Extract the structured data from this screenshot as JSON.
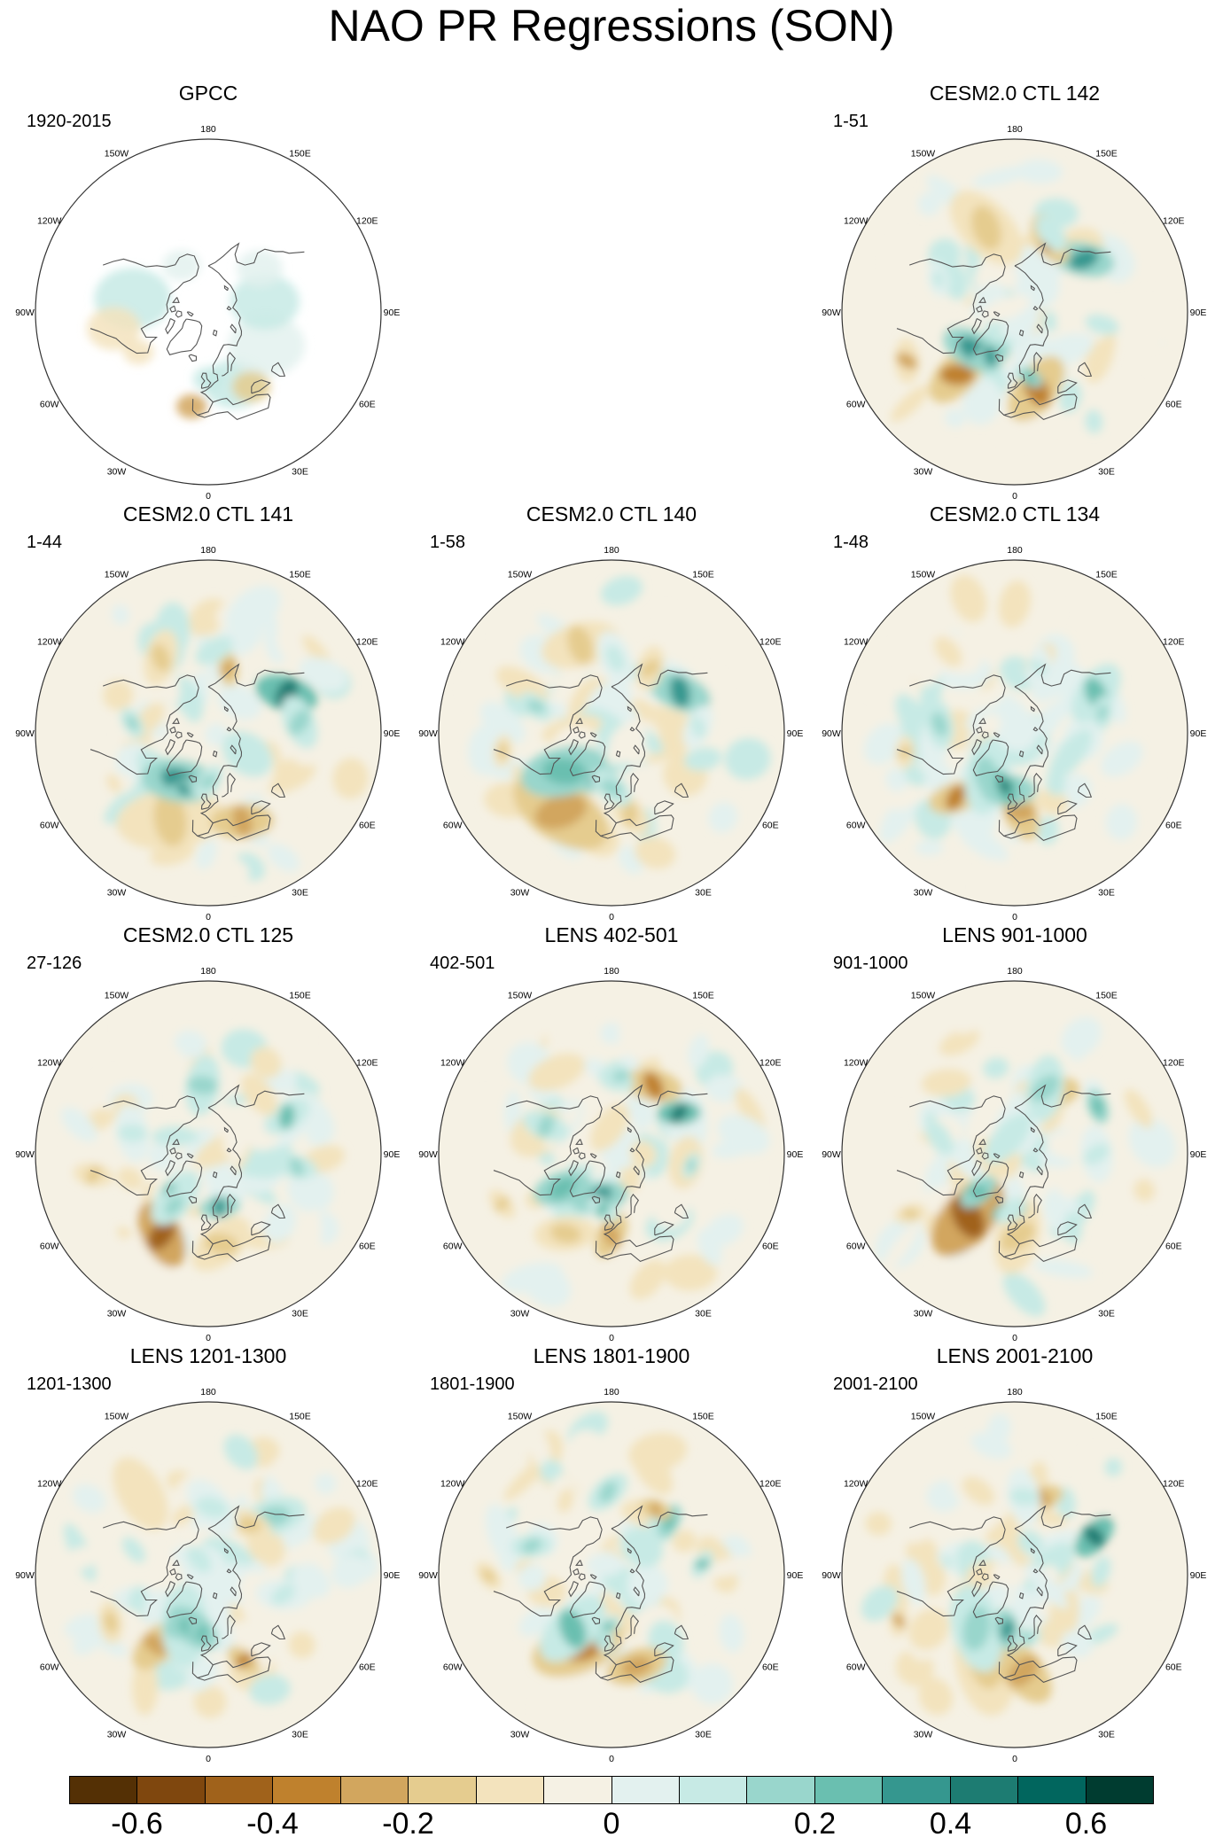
{
  "title": "NAO PR Regressions (SON)",
  "longitude_labels": [
    "180",
    "150E",
    "120E",
    "90E",
    "60E",
    "30E",
    "0",
    "30W",
    "60W",
    "90W",
    "120W",
    "150W"
  ],
  "panels": [
    {
      "id": "gpcc",
      "title": "GPCC",
      "subtitle": "1920-2015",
      "land_only": true
    },
    {
      "id": "ctl142",
      "title": "CESM2.0 CTL 142",
      "subtitle": "1-51"
    },
    {
      "id": "ctl141",
      "title": "CESM2.0 CTL 141",
      "subtitle": "1-44"
    },
    {
      "id": "ctl140",
      "title": "CESM2.0 CTL 140",
      "subtitle": "1-58"
    },
    {
      "id": "ctl134",
      "title": "CESM2.0 CTL 134",
      "subtitle": "1-48"
    },
    {
      "id": "ctl125",
      "title": "CESM2.0 CTL 125",
      "subtitle": "27-126"
    },
    {
      "id": "lens402",
      "title": "LENS 402-501",
      "subtitle": "402-501"
    },
    {
      "id": "lens901",
      "title": "LENS 901-1000",
      "subtitle": "901-1000"
    },
    {
      "id": "lens1201",
      "title": "LENS 1201-1300",
      "subtitle": "1201-1300"
    },
    {
      "id": "lens1801",
      "title": "LENS 1801-1900",
      "subtitle": "1801-1900"
    },
    {
      "id": "lens2001",
      "title": "LENS 2001-2100",
      "subtitle": "2001-2100"
    }
  ],
  "colorbar": {
    "colors": [
      "#543005",
      "#7f470e",
      "#a0621b",
      "#bf812d",
      "#d2a65e",
      "#e5cc8f",
      "#f3e3bd",
      "#f5f1e4",
      "#e3f1ef",
      "#c7eae5",
      "#99d6cc",
      "#6abfb0",
      "#35978f",
      "#1d7c72",
      "#01665e",
      "#003c30"
    ],
    "labels": [
      "-0.6",
      "-0.4",
      "-0.2",
      "0",
      "0.2",
      "0.4",
      "0.6"
    ],
    "label_boxes": [
      1,
      3,
      5,
      8,
      11,
      13,
      15
    ]
  },
  "chart_data": {
    "type": "map",
    "projection": "north polar stereographic",
    "variable": "PR regression on NAO",
    "season": "SON",
    "contour_levels": [
      -0.7,
      -0.6,
      -0.5,
      -0.4,
      -0.3,
      -0.2,
      -0.1,
      0,
      0.1,
      0.2,
      0.3,
      0.4,
      0.5,
      0.6,
      0.7
    ]
  }
}
